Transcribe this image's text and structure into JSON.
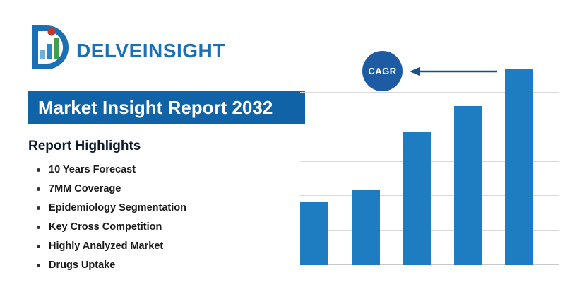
{
  "logo": {
    "text": "DELVEINSIGHT",
    "icon": "delveinsight-d-barchart-icon",
    "colors": {
      "blue": "#1b6fb5",
      "light_blue": "#6fb0d9",
      "red": "#c0392b",
      "green": "#3f9f4e"
    }
  },
  "banner": {
    "title": "Market Insight Report 2032",
    "bg_color": "#0f63a6",
    "text_color": "#ffffff"
  },
  "highlights": {
    "heading": "Report Highlights",
    "items": [
      "10 Years Forecast",
      "7MM Coverage",
      "Epidemiology Segmentation",
      "Key Cross Competition",
      "Highly Analyzed Market",
      "Drugs Uptake"
    ]
  },
  "chart_data": {
    "type": "bar",
    "categories": [
      "",
      "",
      "",
      "",
      ""
    ],
    "values": [
      32,
      38,
      68,
      81,
      100
    ],
    "title": "",
    "xlabel": "",
    "ylabel": "",
    "ylim": [
      0,
      100
    ],
    "grid": true,
    "legend": false,
    "bar_color": "#1e7dc1",
    "annotation": {
      "label": "CAGR",
      "circle_color": "#1d5ca3",
      "arrow_color": "#174f8f",
      "arrow_direction": "left"
    }
  }
}
